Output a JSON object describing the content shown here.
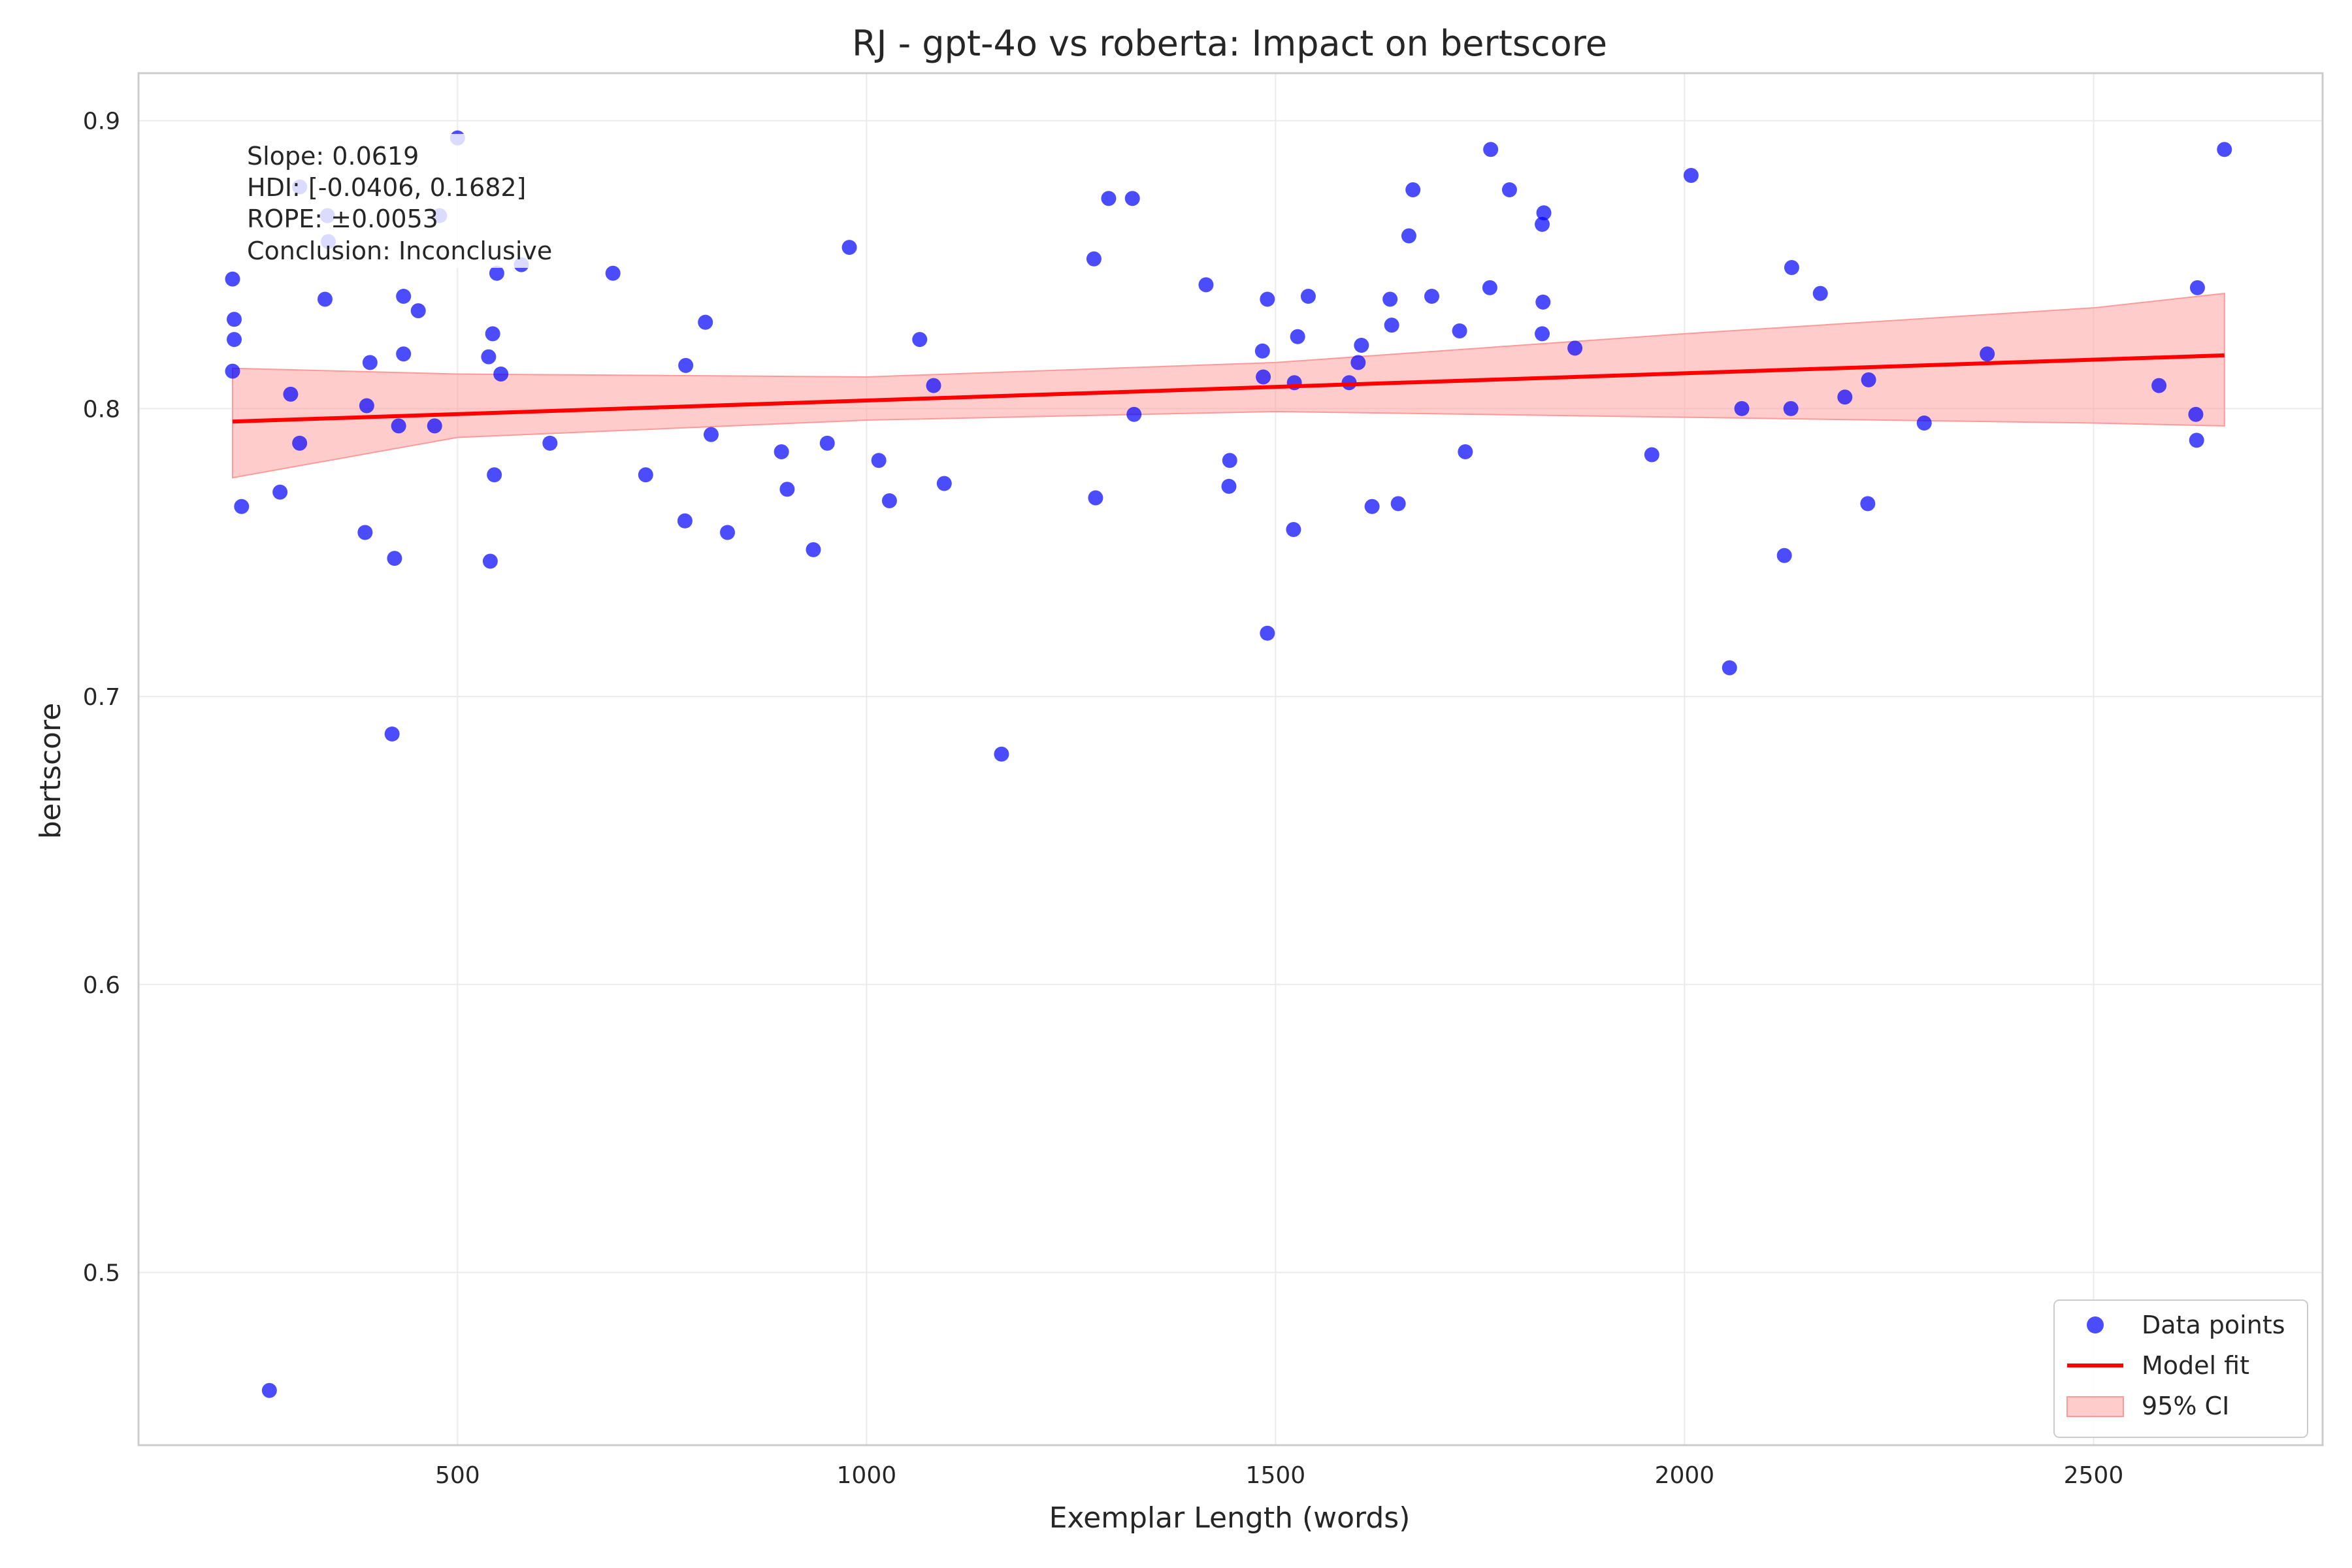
{
  "chart_data": {
    "type": "scatter",
    "title": "RJ - gpt-4o vs roberta: Impact on bertscore",
    "xlabel": "Exemplar Length (words)",
    "ylabel": "bertscore",
    "xlim": [
      110,
      2780
    ],
    "ylim": [
      0.44,
      0.9165
    ],
    "xticks": [
      "500",
      "1000",
      "1500",
      "2000",
      "2500"
    ],
    "yticks": [
      "0.5",
      "0.6",
      "0.7",
      "0.8",
      "0.9"
    ],
    "grid": true,
    "legend_position": "lower-right",
    "legend": [
      "Data points",
      "Model fit",
      "95% CI"
    ],
    "annotation": [
      "Slope: 0.0619",
      "HDI: [-0.0406, 0.1682]",
      "ROPE: ±0.0053",
      "Conclusion: Inconclusive"
    ],
    "colors": {
      "points": "#0000ff",
      "fit": "#ff0000",
      "ci": "#ff9999"
    },
    "fit": {
      "x": [
        225,
        2660
      ],
      "y": [
        0.7955,
        0.8185
      ]
    },
    "ci_band": {
      "x": [
        225,
        500,
        1000,
        1500,
        2000,
        2500,
        2660
      ],
      "lower": [
        0.776,
        0.79,
        0.796,
        0.799,
        0.797,
        0.795,
        0.794
      ],
      "upper": [
        0.814,
        0.812,
        0.811,
        0.816,
        0.826,
        0.835,
        0.84
      ]
    },
    "points": [
      [
        225,
        0.845
      ],
      [
        227,
        0.831
      ],
      [
        227,
        0.824
      ],
      [
        225,
        0.813
      ],
      [
        236,
        0.766
      ],
      [
        270,
        0.459
      ],
      [
        283,
        0.771
      ],
      [
        296,
        0.805
      ],
      [
        307,
        0.788
      ],
      [
        307,
        0.877
      ],
      [
        338,
        0.838
      ],
      [
        341,
        0.867
      ],
      [
        342,
        0.858
      ],
      [
        387,
        0.757
      ],
      [
        389,
        0.801
      ],
      [
        393,
        0.816
      ],
      [
        420,
        0.687
      ],
      [
        423,
        0.748
      ],
      [
        428,
        0.794
      ],
      [
        434,
        0.839
      ],
      [
        434,
        0.819
      ],
      [
        452,
        0.834
      ],
      [
        472,
        0.794
      ],
      [
        478,
        0.867
      ],
      [
        500,
        0.894
      ],
      [
        538,
        0.818
      ],
      [
        540,
        0.747
      ],
      [
        543,
        0.826
      ],
      [
        545,
        0.777
      ],
      [
        548,
        0.847
      ],
      [
        553,
        0.812
      ],
      [
        578,
        0.85
      ],
      [
        613,
        0.788
      ],
      [
        690,
        0.847
      ],
      [
        730,
        0.777
      ],
      [
        778,
        0.761
      ],
      [
        779,
        0.815
      ],
      [
        803,
        0.83
      ],
      [
        810,
        0.791
      ],
      [
        830,
        0.757
      ],
      [
        896,
        0.785
      ],
      [
        903,
        0.772
      ],
      [
        935,
        0.751
      ],
      [
        952,
        0.788
      ],
      [
        979,
        0.856
      ],
      [
        1015,
        0.782
      ],
      [
        1028,
        0.768
      ],
      [
        1065,
        0.824
      ],
      [
        1082,
        0.808
      ],
      [
        1095,
        0.774
      ],
      [
        1165,
        0.68
      ],
      [
        1278,
        0.852
      ],
      [
        1280,
        0.769
      ],
      [
        1296,
        0.873
      ],
      [
        1325,
        0.873
      ],
      [
        1327,
        0.798
      ],
      [
        1415,
        0.843
      ],
      [
        1443,
        0.773
      ],
      [
        1444,
        0.782
      ],
      [
        1484,
        0.82
      ],
      [
        1485,
        0.811
      ],
      [
        1490,
        0.722
      ],
      [
        1490,
        0.838
      ],
      [
        1522,
        0.758
      ],
      [
        1523,
        0.809
      ],
      [
        1527,
        0.825
      ],
      [
        1540,
        0.839
      ],
      [
        1590,
        0.809
      ],
      [
        1601,
        0.816
      ],
      [
        1605,
        0.822
      ],
      [
        1618,
        0.766
      ],
      [
        1640,
        0.838
      ],
      [
        1642,
        0.829
      ],
      [
        1650,
        0.767
      ],
      [
        1663,
        0.86
      ],
      [
        1668,
        0.876
      ],
      [
        1691,
        0.839
      ],
      [
        1725,
        0.827
      ],
      [
        1732,
        0.785
      ],
      [
        1762,
        0.842
      ],
      [
        1763,
        0.89
      ],
      [
        1786,
        0.876
      ],
      [
        1826,
        0.864
      ],
      [
        1826,
        0.826
      ],
      [
        1827,
        0.837
      ],
      [
        1828,
        0.868
      ],
      [
        1866,
        0.821
      ],
      [
        1960,
        0.784
      ],
      [
        2008,
        0.881
      ],
      [
        2055,
        0.71
      ],
      [
        2070,
        0.8
      ],
      [
        2122,
        0.749
      ],
      [
        2130,
        0.8
      ],
      [
        2131,
        0.849
      ],
      [
        2166,
        0.84
      ],
      [
        2196,
        0.804
      ],
      [
        2224,
        0.767
      ],
      [
        2225,
        0.81
      ],
      [
        2293,
        0.795
      ],
      [
        2370,
        0.819
      ],
      [
        2580,
        0.808
      ],
      [
        2625,
        0.798
      ],
      [
        2626,
        0.789
      ],
      [
        2627,
        0.842
      ],
      [
        2660,
        0.89
      ]
    ]
  }
}
